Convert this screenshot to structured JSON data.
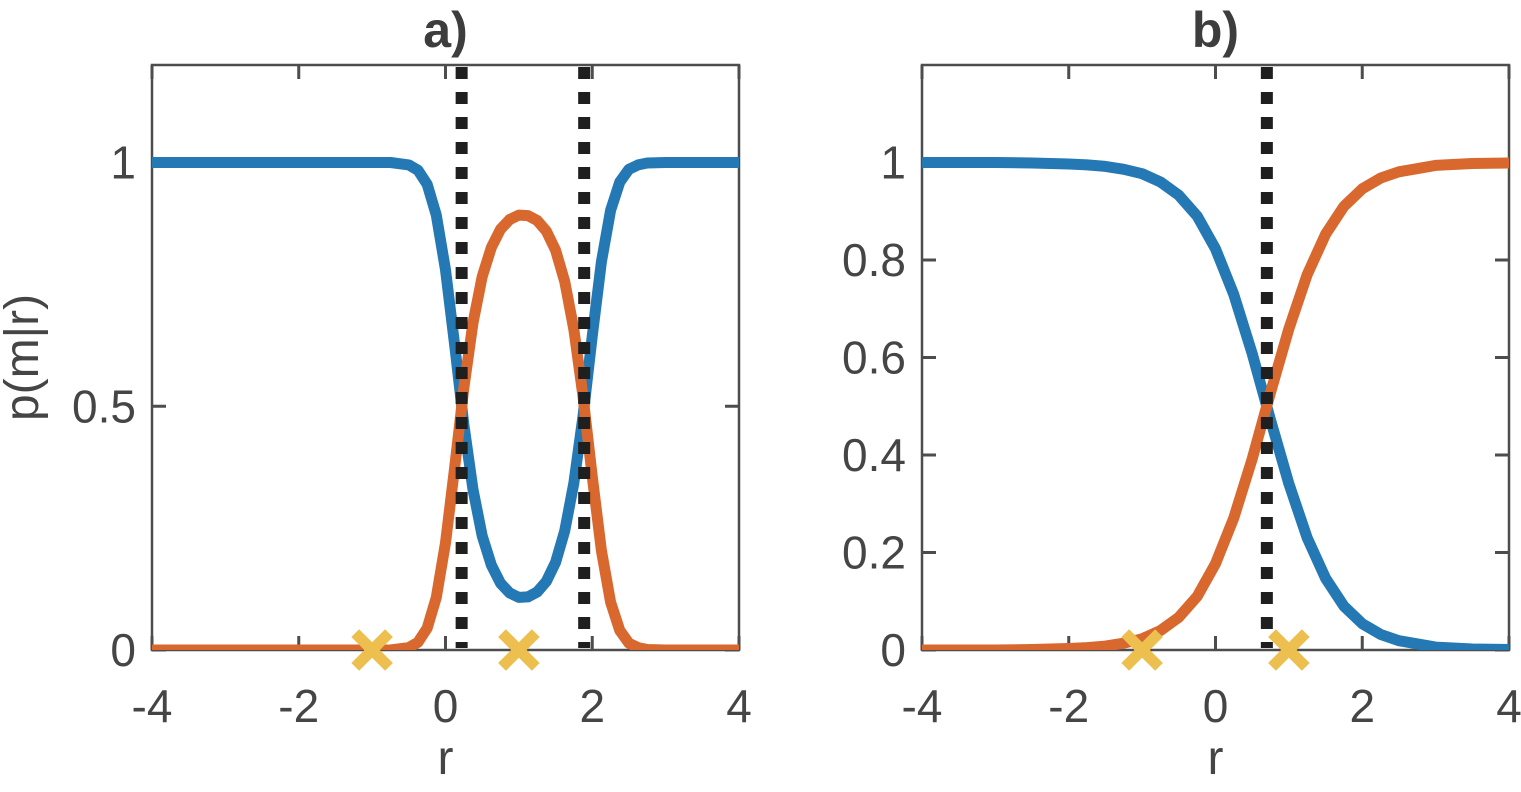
{
  "figure": {
    "background": "#ffffff",
    "axes_color": "#4d4d4d",
    "text_color": "#454545"
  },
  "chart_data": [
    {
      "panel": "a",
      "type": "line",
      "title": "a)",
      "xlabel": "r",
      "ylabel": "p(m|r)",
      "xlim": [
        -4,
        4
      ],
      "ylim": [
        0,
        1.2
      ],
      "x_ticks": [
        -4,
        -2,
        0,
        2,
        4
      ],
      "x_tick_labels": [
        "-4",
        "-2",
        "0",
        "2",
        "4"
      ],
      "y_ticks": [
        0,
        0.5,
        1
      ],
      "y_tick_labels": [
        "0",
        "0.5",
        "1"
      ],
      "grid": false,
      "legend": "none",
      "series": [
        {
          "name": "blue",
          "color": "#2478b4",
          "x": [
            -4,
            -3,
            -2,
            -1.5,
            -1,
            -0.75,
            -0.5,
            -0.375,
            -0.25,
            -0.125,
            0,
            0.125,
            0.25,
            0.375,
            0.5,
            0.625,
            0.75,
            0.875,
            1,
            1.125,
            1.25,
            1.375,
            1.5,
            1.625,
            1.75,
            1.875,
            2,
            2.125,
            2.25,
            2.375,
            2.5,
            2.625,
            2.75,
            3,
            3.5,
            4
          ],
          "y": [
            1,
            1,
            1,
            1,
            1,
            1,
            0.995,
            0.984,
            0.955,
            0.892,
            0.78,
            0.625,
            0.463,
            0.329,
            0.234,
            0.174,
            0.137,
            0.117,
            0.108,
            0.109,
            0.119,
            0.141,
            0.18,
            0.244,
            0.343,
            0.481,
            0.645,
            0.796,
            0.902,
            0.96,
            0.986,
            0.995,
            0.999,
            1,
            1,
            1
          ]
        },
        {
          "name": "orange",
          "color": "#d9682e",
          "x": [
            -4,
            -3,
            -2,
            -1.5,
            -1,
            -0.75,
            -0.5,
            -0.375,
            -0.25,
            -0.125,
            0,
            0.125,
            0.25,
            0.375,
            0.5,
            0.625,
            0.75,
            0.875,
            1,
            1.125,
            1.25,
            1.375,
            1.5,
            1.625,
            1.75,
            1.875,
            2,
            2.125,
            2.25,
            2.375,
            2.5,
            2.625,
            2.75,
            3,
            3.5,
            4
          ],
          "y": [
            0,
            0,
            0,
            0,
            0,
            0,
            0.005,
            0.016,
            0.045,
            0.108,
            0.22,
            0.375,
            0.537,
            0.671,
            0.766,
            0.826,
            0.863,
            0.883,
            0.892,
            0.891,
            0.881,
            0.859,
            0.82,
            0.756,
            0.657,
            0.519,
            0.355,
            0.204,
            0.098,
            0.04,
            0.014,
            0.005,
            0.001,
            0,
            0,
            0
          ]
        }
      ],
      "decision_boundaries": [
        0.22,
        1.89
      ],
      "boundary_style": {
        "color": "#1f1f1f",
        "pattern": "dotted"
      },
      "markers": {
        "symbol": "x",
        "color": "#ecbf4e",
        "points": [
          [
            -1,
            0
          ],
          [
            1,
            0
          ]
        ]
      }
    },
    {
      "panel": "b",
      "type": "line",
      "title": "b)",
      "xlabel": "r",
      "ylabel": "",
      "xlim": [
        -4,
        4
      ],
      "ylim": [
        0,
        1.2
      ],
      "x_ticks": [
        -4,
        -2,
        0,
        2,
        4
      ],
      "x_tick_labels": [
        "-4",
        "-2",
        "0",
        "2",
        "4"
      ],
      "y_ticks": [
        0,
        0.2,
        0.4,
        0.6,
        0.8,
        1
      ],
      "y_tick_labels": [
        "0",
        "0.2",
        "0.4",
        "0.6",
        "0.8",
        "1"
      ],
      "grid": false,
      "legend": "none",
      "series": [
        {
          "name": "blue",
          "color": "#2478b4",
          "x": [
            -4,
            -3,
            -2.5,
            -2,
            -1.75,
            -1.5,
            -1.25,
            -1,
            -0.75,
            -0.5,
            -0.25,
            0,
            0.25,
            0.5,
            0.75,
            1,
            1.25,
            1.5,
            1.75,
            2,
            2.25,
            2.5,
            3,
            3.5,
            4
          ],
          "y": [
            1,
            1,
            0.999,
            0.997,
            0.995,
            0.992,
            0.986,
            0.977,
            0.96,
            0.933,
            0.89,
            0.823,
            0.729,
            0.608,
            0.472,
            0.341,
            0.23,
            0.147,
            0.09,
            0.054,
            0.032,
            0.019,
            0.006,
            0.002,
            0.001
          ]
        },
        {
          "name": "orange",
          "color": "#d9682e",
          "x": [
            -4,
            -3,
            -2.5,
            -2,
            -1.75,
            -1.5,
            -1.25,
            -1,
            -0.75,
            -0.5,
            -0.25,
            0,
            0.25,
            0.5,
            0.75,
            1,
            1.25,
            1.5,
            1.75,
            2,
            2.25,
            2.5,
            3,
            3.5,
            4
          ],
          "y": [
            0,
            0,
            0.001,
            0.003,
            0.005,
            0.008,
            0.014,
            0.023,
            0.04,
            0.067,
            0.11,
            0.177,
            0.271,
            0.392,
            0.528,
            0.659,
            0.77,
            0.853,
            0.91,
            0.946,
            0.968,
            0.981,
            0.994,
            0.998,
            0.999
          ]
        }
      ],
      "decision_boundaries": [
        0.7
      ],
      "boundary_style": {
        "color": "#1f1f1f",
        "pattern": "dotted"
      },
      "markers": {
        "symbol": "x",
        "color": "#ecbf4e",
        "points": [
          [
            -1,
            0
          ],
          [
            1,
            0
          ]
        ]
      }
    }
  ]
}
